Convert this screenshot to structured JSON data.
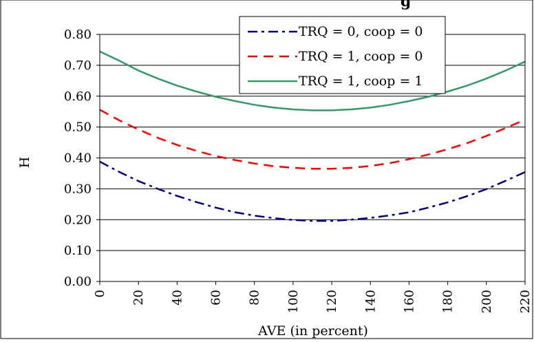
{
  "chart_data": {
    "type": "line",
    "title": "g",
    "xlabel": "AVE (in percent)",
    "ylabel": "H",
    "xlim": [
      0,
      220
    ],
    "ylim": [
      0,
      0.8
    ],
    "x_ticks": [
      "0",
      "20",
      "40",
      "60",
      "80",
      "100",
      "120",
      "140",
      "160",
      "180",
      "200",
      "220"
    ],
    "y_ticks": [
      "0.00",
      "0.10",
      "0.20",
      "0.30",
      "0.40",
      "0.50",
      "0.60",
      "0.70",
      "0.80"
    ],
    "grid": "horizontal",
    "legend_position": "top-right",
    "x": [
      0,
      10,
      20,
      30,
      40,
      50,
      60,
      70,
      80,
      90,
      100,
      110,
      120,
      130,
      140,
      150,
      160,
      170,
      180,
      190,
      200,
      210,
      220
    ],
    "series": [
      {
        "name": "TRQ = 0, coop = 0",
        "color": "#000080",
        "dash": "dash-dot",
        "values": [
          0.388,
          0.355,
          0.325,
          0.3,
          0.277,
          0.257,
          0.239,
          0.224,
          0.213,
          0.205,
          0.199,
          0.196,
          0.196,
          0.2,
          0.206,
          0.214,
          0.224,
          0.239,
          0.256,
          0.276,
          0.299,
          0.326,
          0.354
        ]
      },
      {
        "name": "TRQ = 1, coop = 0",
        "color": "#ff0000",
        "dash": "dash",
        "values": [
          0.556,
          0.522,
          0.492,
          0.465,
          0.442,
          0.423,
          0.406,
          0.393,
          0.382,
          0.373,
          0.368,
          0.365,
          0.365,
          0.368,
          0.374,
          0.383,
          0.396,
          0.411,
          0.428,
          0.448,
          0.471,
          0.497,
          0.524
        ]
      },
      {
        "name": "TRQ = 1, coop = 1",
        "color": "#339966",
        "dash": "solid",
        "values": [
          0.745,
          0.715,
          0.683,
          0.657,
          0.634,
          0.615,
          0.598,
          0.584,
          0.572,
          0.563,
          0.557,
          0.554,
          0.554,
          0.557,
          0.563,
          0.572,
          0.584,
          0.598,
          0.615,
          0.634,
          0.657,
          0.683,
          0.712
        ]
      }
    ]
  }
}
